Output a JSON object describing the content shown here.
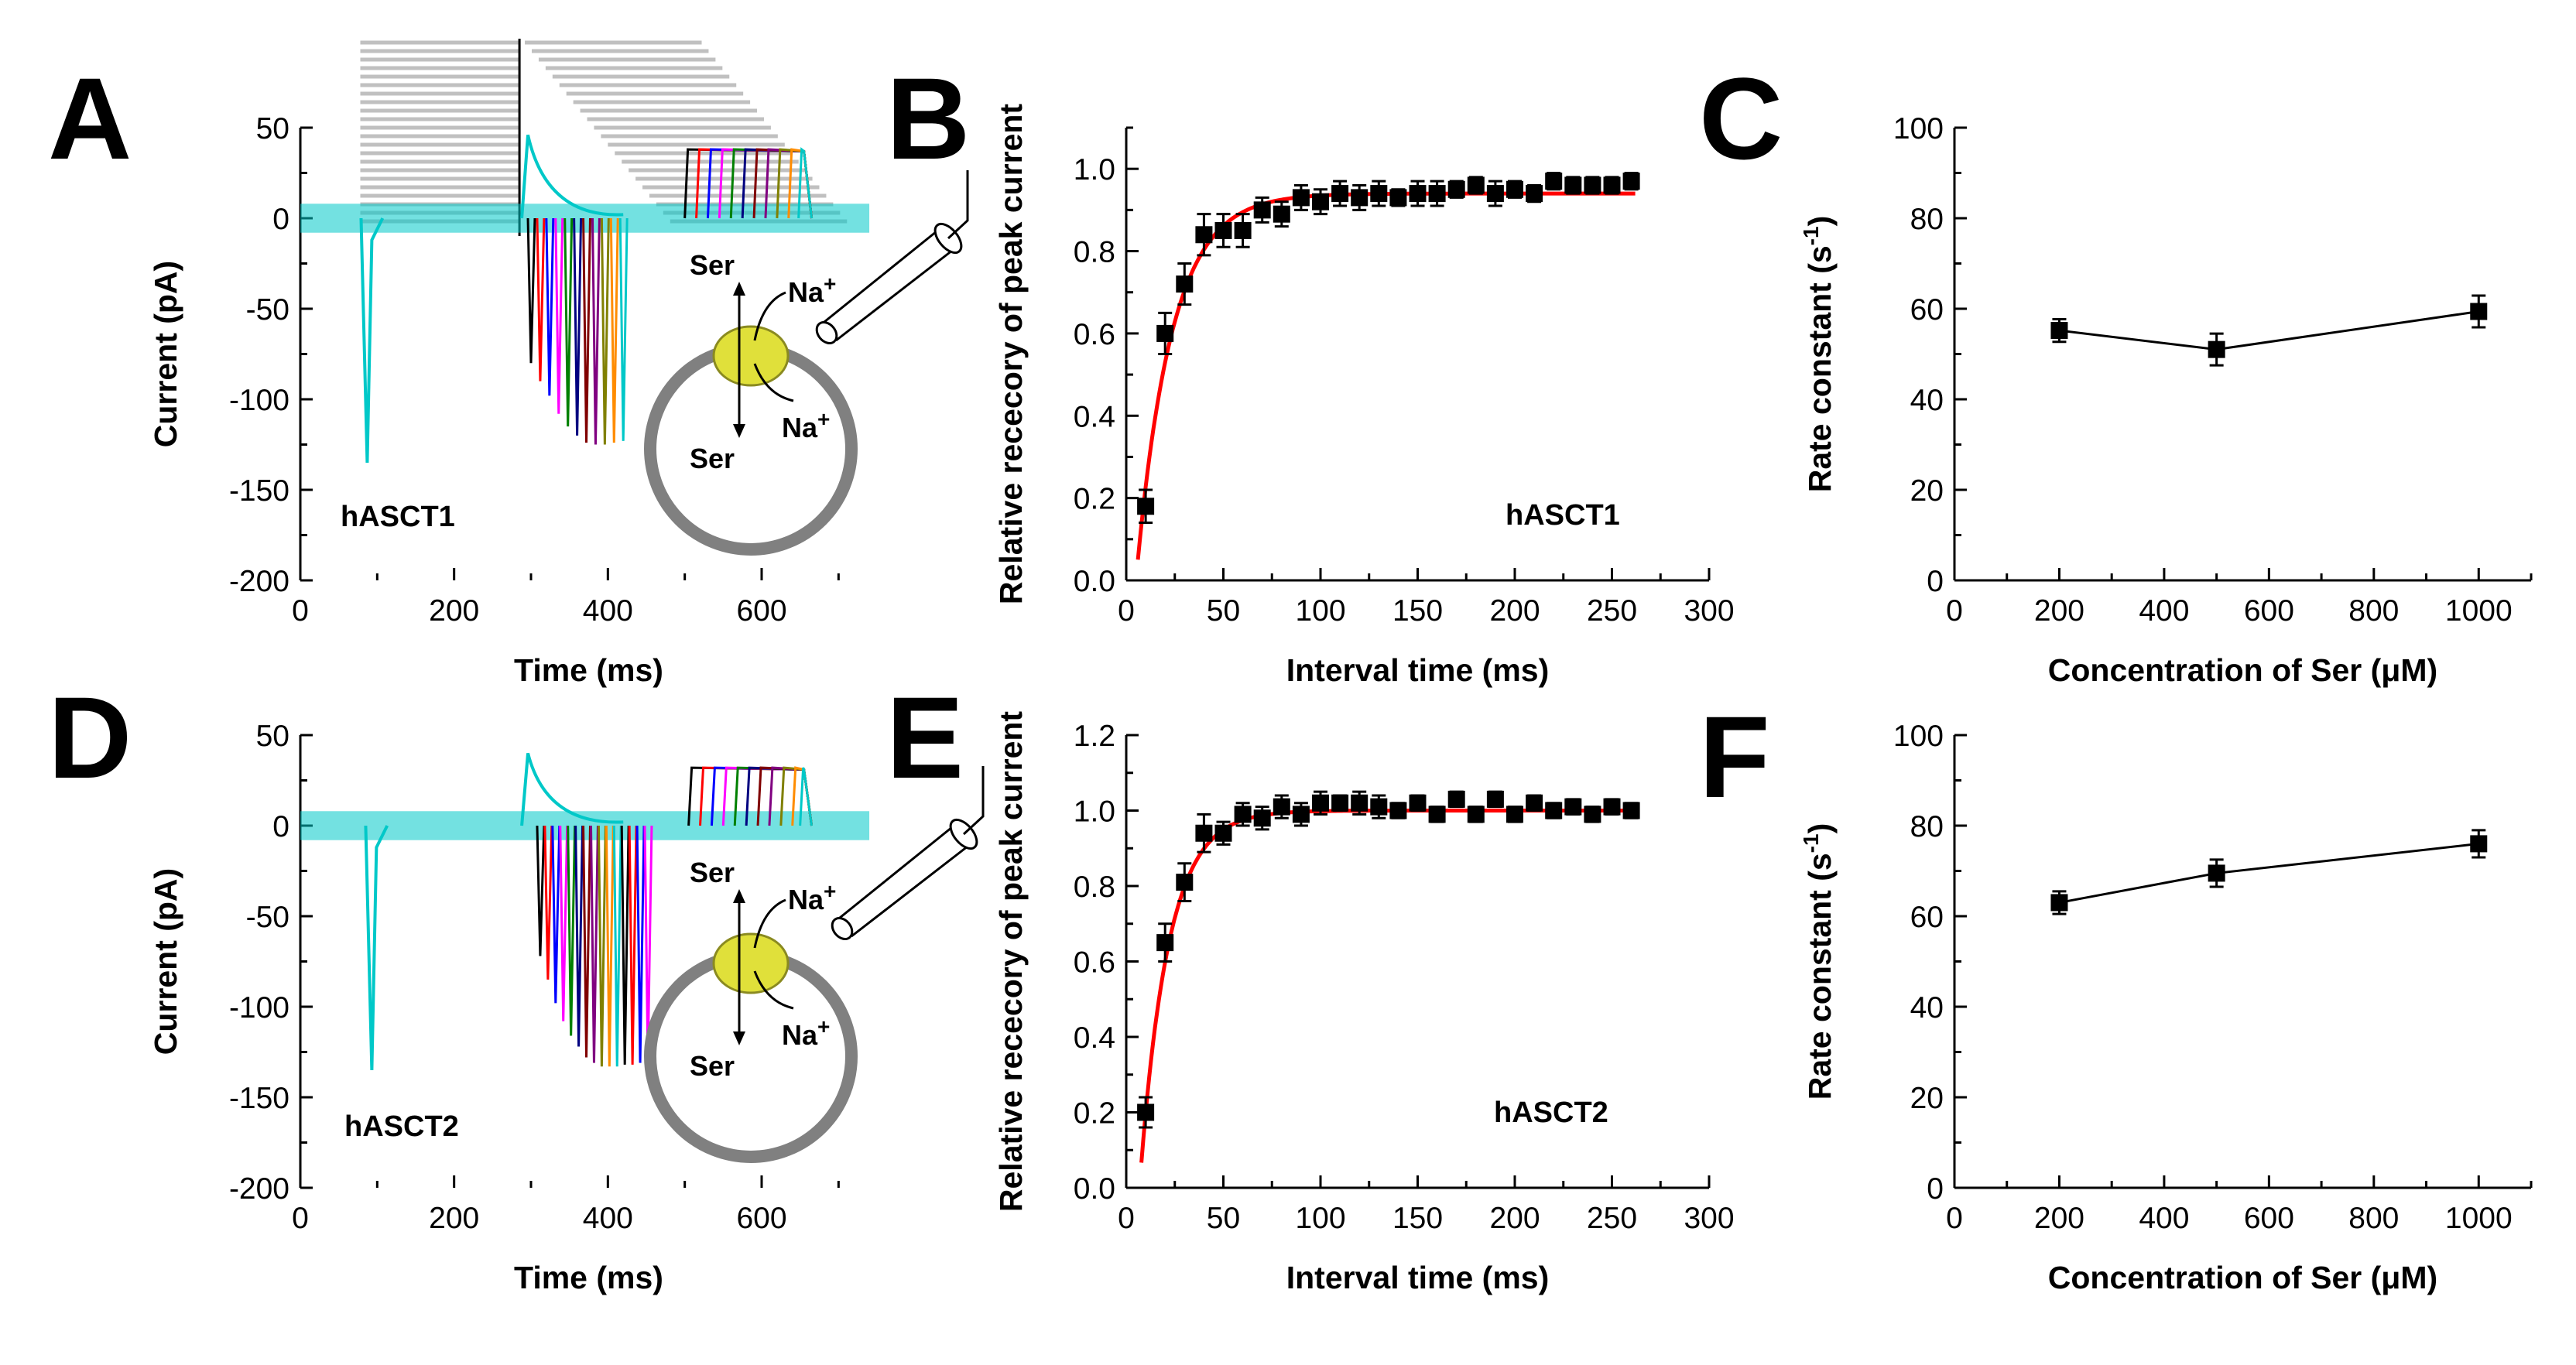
{
  "figure": {
    "panel_labels": [
      "A",
      "B",
      "C",
      "D",
      "E",
      "F"
    ],
    "schematic": {
      "ser_top": "Ser",
      "ser_bottom": "Ser",
      "na_top": "Na",
      "na_bottom": "Na",
      "charge": "+"
    }
  },
  "chart_data": [
    {
      "panel": "A",
      "type": "line",
      "title": "",
      "xlabel": "Time (ms)",
      "ylabel": "Current (pA)",
      "xlim": [
        0,
        750
      ],
      "ylim": [
        -200,
        50
      ],
      "xticks": [
        "0",
        "200",
        "400",
        "600"
      ],
      "yticks": [
        "50",
        "0",
        "-50",
        "-100",
        "-150",
        "-200"
      ],
      "annotation": "hASCT1",
      "series_colors": [
        "#000000",
        "#ff0000",
        "#0000ff",
        "#ff00ff",
        "#008000",
        "#000080",
        "#800000",
        "#800080",
        "#808000",
        "#ff8c00",
        "#00c8c8"
      ],
      "first_peak": {
        "x": 87,
        "y": -135
      },
      "recovery_peaks": {
        "x": [
          300,
          312,
          324,
          336,
          348,
          360,
          372,
          384,
          396,
          408,
          420
        ],
        "y": [
          -80,
          -90,
          -98,
          -108,
          -115,
          -120,
          -124,
          -125,
          -125,
          -124,
          -123
        ]
      },
      "outward_plateau": 38,
      "plateau_onsets": [
        500,
        515,
        530,
        545,
        560,
        575,
        590,
        605,
        620,
        635,
        648
      ]
    },
    {
      "panel": "B",
      "type": "scatter",
      "title": "",
      "xlabel": "Interval time (ms)",
      "ylabel": "Relative rececory of peak current",
      "xlim": [
        0,
        300
      ],
      "ylim": [
        0,
        1.1
      ],
      "xticks": [
        "0",
        "50",
        "100",
        "150",
        "200",
        "250",
        "300"
      ],
      "yticks": [
        "0.0",
        "0.2",
        "0.4",
        "0.6",
        "0.8",
        "1.0"
      ],
      "annotation": "hASCT1",
      "x": [
        10,
        20,
        30,
        40,
        50,
        60,
        70,
        80,
        90,
        100,
        110,
        120,
        130,
        140,
        150,
        160,
        170,
        180,
        190,
        200,
        210,
        220,
        230,
        240,
        250,
        260
      ],
      "y": [
        0.18,
        0.6,
        0.72,
        0.84,
        0.85,
        0.85,
        0.9,
        0.89,
        0.93,
        0.92,
        0.94,
        0.93,
        0.94,
        0.93,
        0.94,
        0.94,
        0.95,
        0.96,
        0.94,
        0.95,
        0.94,
        0.97,
        0.96,
        0.96,
        0.96,
        0.97
      ],
      "err": [
        0.04,
        0.05,
        0.05,
        0.05,
        0.04,
        0.04,
        0.03,
        0.03,
        0.03,
        0.03,
        0.03,
        0.03,
        0.03,
        0.02,
        0.03,
        0.03,
        0.02,
        0.02,
        0.03,
        0.02,
        0.02,
        0.02,
        0.02,
        0.02,
        0.02,
        0.02
      ],
      "fit": {
        "model": "y = A * (1 - exp(-k (x - x0)))",
        "A": 0.94,
        "k": 0.0552,
        "x0": 5.0,
        "color": "#ff0000"
      }
    },
    {
      "panel": "C",
      "type": "line",
      "title": "",
      "xlabel": "Concentration of Ser (μM)",
      "ylabel": "Rate constant (s",
      "ylabel_sup": "-1",
      "ylabel_close": ")",
      "xlim": [
        0,
        1100
      ],
      "ylim": [
        0,
        100
      ],
      "xticks": [
        "0",
        "200",
        "400",
        "600",
        "800",
        "1000"
      ],
      "yticks": [
        "0",
        "20",
        "40",
        "60",
        "80",
        "100"
      ],
      "x": [
        200,
        500,
        1000
      ],
      "y": [
        55.2,
        51.0,
        59.4
      ],
      "err": [
        2.5,
        3.5,
        3.5
      ]
    },
    {
      "panel": "D",
      "type": "line",
      "title": "",
      "xlabel": "Time (ms)",
      "ylabel": "Current (pA)",
      "xlim": [
        0,
        750
      ],
      "ylim": [
        -200,
        50
      ],
      "xticks": [
        "0",
        "200",
        "400",
        "600"
      ],
      "yticks": [
        "50",
        "0",
        "-50",
        "-100",
        "-150",
        "-200"
      ],
      "annotation": "hASCT2",
      "series_colors": [
        "#000000",
        "#ff0000",
        "#0000ff",
        "#ff00ff",
        "#008000",
        "#000080",
        "#800000",
        "#800080",
        "#808000",
        "#ff8c00",
        "#00c8c8"
      ],
      "first_peak": {
        "x": 93,
        "y": -135
      },
      "recovery_peaks": {
        "x": [
          312,
          322,
          332,
          342,
          352,
          362,
          372,
          382,
          392,
          402,
          412,
          422,
          432,
          442,
          452
        ],
        "y": [
          -72,
          -85,
          -98,
          -108,
          -116,
          -122,
          -128,
          -131,
          -133,
          -133,
          -133,
          -132,
          -132,
          -131,
          -130
        ]
      },
      "outward_plateau": 32,
      "plateau_onsets": [
        505,
        520,
        535,
        550,
        565,
        580,
        595,
        610,
        625,
        640,
        650
      ]
    },
    {
      "panel": "E",
      "type": "scatter",
      "title": "",
      "xlabel": "Interval time (ms)",
      "ylabel": "Relative rececory of peak current",
      "xlim": [
        0,
        300
      ],
      "ylim": [
        0,
        1.2
      ],
      "xticks": [
        "0",
        "50",
        "100",
        "150",
        "200",
        "250",
        "300"
      ],
      "yticks": [
        "0.0",
        "0.2",
        "0.4",
        "0.6",
        "0.8",
        "1.0",
        "1.2"
      ],
      "annotation": "hASCT2",
      "x": [
        10,
        20,
        30,
        40,
        50,
        60,
        70,
        80,
        90,
        100,
        110,
        120,
        130,
        140,
        150,
        160,
        170,
        180,
        190,
        200,
        210,
        220,
        230,
        240,
        250,
        260
      ],
      "y": [
        0.2,
        0.65,
        0.81,
        0.94,
        0.94,
        0.99,
        0.98,
        1.01,
        0.99,
        1.02,
        1.02,
        1.02,
        1.01,
        1.0,
        1.02,
        0.99,
        1.03,
        0.99,
        1.03,
        0.99,
        1.02,
        1.0,
        1.01,
        0.99,
        1.01,
        1.0
      ],
      "err": [
        0.04,
        0.05,
        0.05,
        0.05,
        0.03,
        0.03,
        0.03,
        0.03,
        0.03,
        0.03,
        0.02,
        0.03,
        0.03,
        0.02,
        0.02,
        0.02,
        0.02,
        0.02,
        0.02,
        0.02,
        0.02,
        0.02,
        0.02,
        0.02,
        0.02,
        0.02
      ],
      "fit": {
        "model": "y = A * (1 - exp(-k (x - x0)))",
        "A": 1.0,
        "k": 0.069,
        "x0": 6.8,
        "color": "#ff0000"
      }
    },
    {
      "panel": "F",
      "type": "line",
      "title": "",
      "xlabel": "Concentration of Ser (μM)",
      "ylabel": "Rate constant (s",
      "ylabel_sup": "-1",
      "ylabel_close": ")",
      "xlim": [
        0,
        1100
      ],
      "ylim": [
        0,
        100
      ],
      "xticks": [
        "0",
        "200",
        "400",
        "600",
        "800",
        "1000"
      ],
      "yticks": [
        "0",
        "20",
        "40",
        "60",
        "80",
        "100"
      ],
      "x": [
        200,
        500,
        1000
      ],
      "y": [
        63.0,
        69.5,
        76.0
      ],
      "err": [
        2.5,
        3.0,
        3.0
      ]
    }
  ]
}
